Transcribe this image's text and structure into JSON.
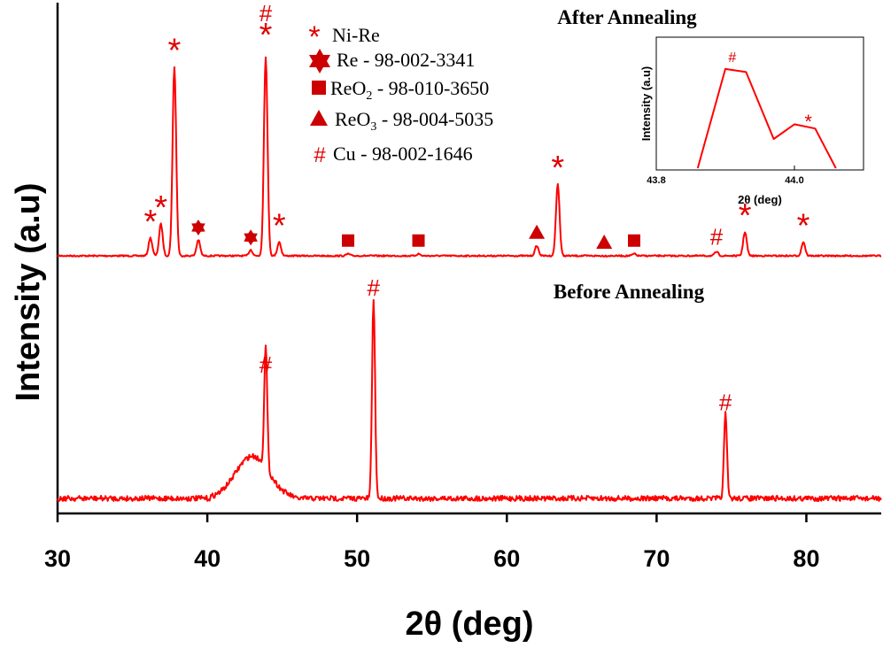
{
  "chart_data": [
    {
      "type": "line",
      "xlabel": "2θ (deg)",
      "ylabel": "Intensity (a.u)",
      "xlim": [
        30,
        85
      ],
      "x_ticks": [
        "30",
        "40",
        "50",
        "60",
        "70",
        "80"
      ],
      "color": "#ff0000",
      "series": [
        {
          "name": "After Annealing",
          "peaks": [
            {
              "x": 36.2,
              "height": 0.09,
              "marker": "*"
            },
            {
              "x": 36.9,
              "height": 0.16,
              "marker": "*"
            },
            {
              "x": 37.8,
              "height": 0.95,
              "marker": "*"
            },
            {
              "x": 39.4,
              "height": 0.08,
              "marker": "Re"
            },
            {
              "x": 42.9,
              "height": 0.03,
              "marker": "Re"
            },
            {
              "x": 43.9,
              "height": 1.0,
              "marker": "#*"
            },
            {
              "x": 44.8,
              "height": 0.07,
              "marker": "*"
            },
            {
              "x": 49.4,
              "height": 0.01,
              "marker": "ReO2"
            },
            {
              "x": 54.1,
              "height": 0.01,
              "marker": "ReO2"
            },
            {
              "x": 62.0,
              "height": 0.05,
              "marker": "ReO3"
            },
            {
              "x": 63.4,
              "height": 0.36,
              "marker": "*"
            },
            {
              "x": 66.5,
              "height": 0.0,
              "marker": "ReO3"
            },
            {
              "x": 68.5,
              "height": 0.01,
              "marker": "ReO2"
            },
            {
              "x": 74.0,
              "height": 0.02,
              "marker": "#"
            },
            {
              "x": 75.9,
              "height": 0.12,
              "marker": "*"
            },
            {
              "x": 79.8,
              "height": 0.07,
              "marker": "*"
            }
          ]
        },
        {
          "name": "Before Annealing",
          "hump": {
            "x_start": 41.0,
            "x_end": 45.0,
            "height": 0.18
          },
          "peaks": [
            {
              "x": 43.9,
              "height": 0.52,
              "marker": "#"
            },
            {
              "x": 51.1,
              "height": 0.85,
              "marker": "#"
            },
            {
              "x": 74.6,
              "height": 0.36,
              "marker": "#"
            }
          ]
        }
      ],
      "legend": {
        "placement": "top-center",
        "entries": [
          {
            "symbol": "asterisk",
            "text": "Ni-Re"
          },
          {
            "symbol": "hexagram",
            "text": "Re - 98-002-3341"
          },
          {
            "symbol": "square",
            "text_main": "ReO",
            "text_sub": "2",
            "text_rest": " - 98-010-3650"
          },
          {
            "symbol": "triangle",
            "text_main": "ReO",
            "text_sub": "3",
            "text_rest": " - 98-004-5035"
          },
          {
            "symbol": "hash",
            "text": "Cu - 98-002-1646"
          }
        ]
      },
      "labels": {
        "after": "After Annealing",
        "before": "Before Annealing"
      }
    },
    {
      "type": "line",
      "xlabel": "2θ (deg)",
      "ylabel": "Intensity (a.u)",
      "xlim": [
        43.8,
        44.1
      ],
      "x_ticks": [
        "43.8",
        "44.0"
      ],
      "x": [
        43.86,
        43.9,
        43.93,
        43.97,
        44.0,
        44.03,
        44.06
      ],
      "y": [
        0.0,
        0.95,
        0.92,
        0.28,
        0.42,
        0.38,
        0.0
      ],
      "peak_markers": [
        {
          "x": 43.91,
          "marker": "#"
        },
        {
          "x": 44.02,
          "marker": "*"
        }
      ]
    }
  ]
}
